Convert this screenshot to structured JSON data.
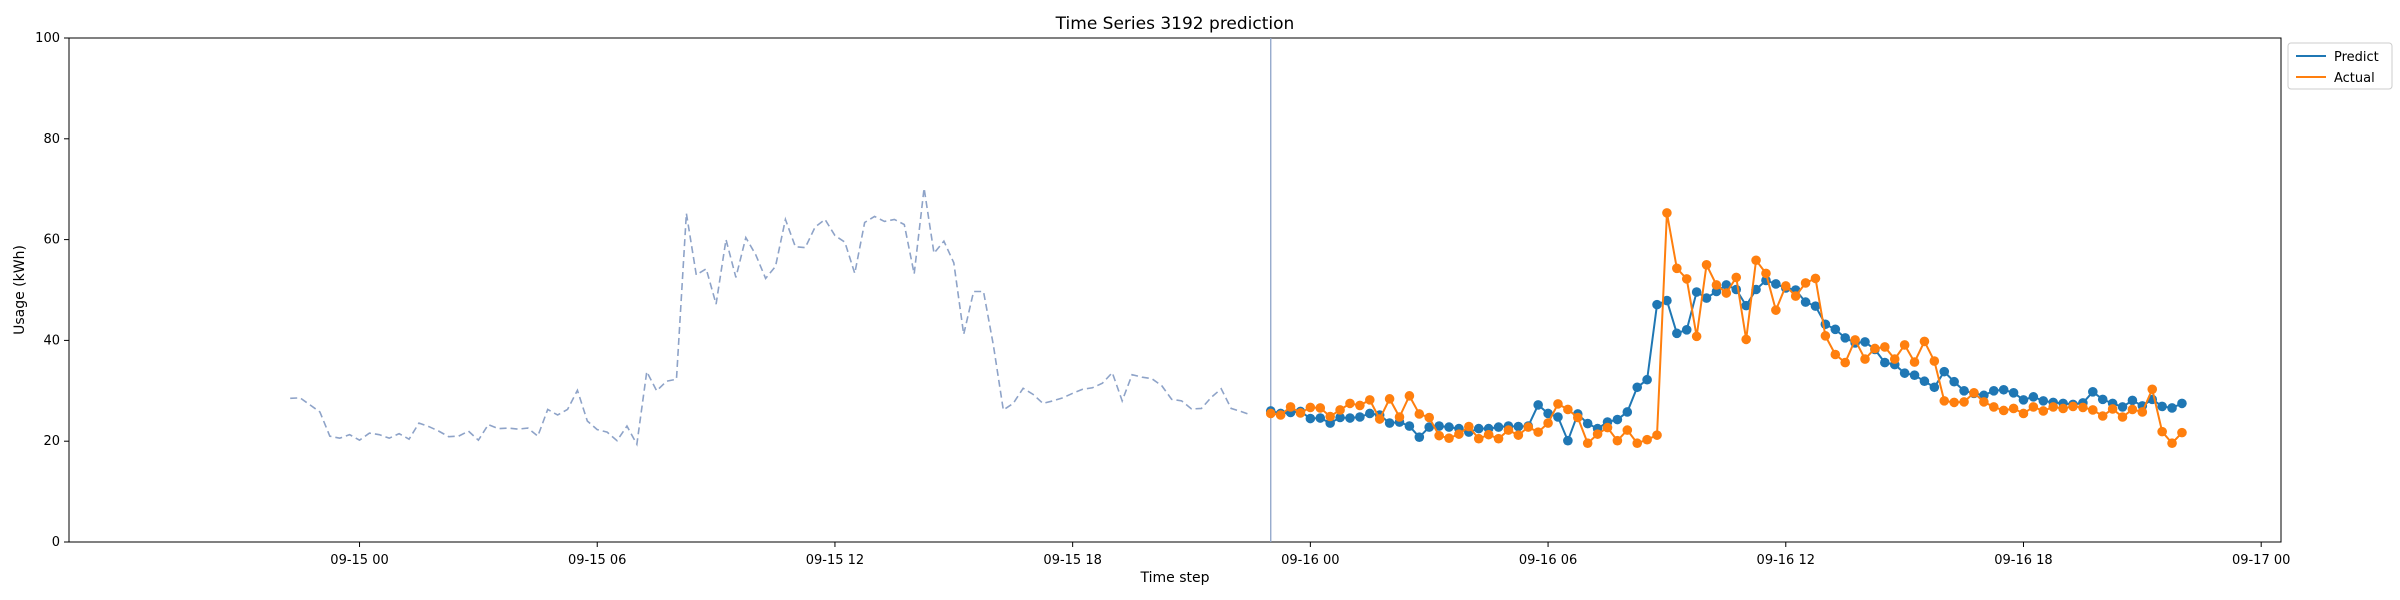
{
  "chart_data": {
    "type": "line",
    "title": "Time Series 3192 prediction",
    "xlabel": "Time step",
    "ylabel": "Usage (kWh)",
    "ylim": [
      0,
      100
    ],
    "yticks": [
      0,
      20,
      40,
      60,
      80,
      100
    ],
    "xlim": [
      "2024-09-14 16:40",
      "2024-09-17 00:30"
    ],
    "xticks": [
      {
        "t": "2024-09-15 00:00",
        "label": "09-15 00"
      },
      {
        "t": "2024-09-15 06:00",
        "label": "09-15 06"
      },
      {
        "t": "2024-09-15 12:00",
        "label": "09-15 12"
      },
      {
        "t": "2024-09-15 18:00",
        "label": "09-15 18"
      },
      {
        "t": "2024-09-16 00:00",
        "label": "09-16 00"
      },
      {
        "t": "2024-09-16 06:00",
        "label": "09-16 06"
      },
      {
        "t": "2024-09-16 12:00",
        "label": "09-16 12"
      },
      {
        "t": "2024-09-16 18:00",
        "label": "09-16 18"
      },
      {
        "t": "2024-09-17 00:00",
        "label": "09-17 00"
      }
    ],
    "grid": false,
    "legend": "upper right, outside plot",
    "forecast_start": "2024-09-15 23:00",
    "series": [
      {
        "name": "",
        "style": "dashed",
        "color": "#8ea3c8",
        "start": "2024-09-14 22:15",
        "interval_minutes": 15,
        "values": [
          28.5,
          28.6,
          27.2,
          25.8,
          21.0,
          20.6,
          21.3,
          20.2,
          21.6,
          21.3,
          20.6,
          21.5,
          20.4,
          23.6,
          22.9,
          22.0,
          20.9,
          21.0,
          22.0,
          20.2,
          23.3,
          22.5,
          22.6,
          22.4,
          22.6,
          21.0,
          26.3,
          25.2,
          26.3,
          30.1,
          24.0,
          22.3,
          21.8,
          20.1,
          23.0,
          19.4,
          33.8,
          30.0,
          31.9,
          32.3,
          65.2,
          53.0,
          54.2,
          47.2,
          60.0,
          52.5,
          60.4,
          57.0,
          52.3,
          54.7,
          64.0,
          58.6,
          58.4,
          62.5,
          64.0,
          60.8,
          59.5,
          53.3,
          63.4,
          64.6,
          63.6,
          64.0,
          63.0,
          53.2,
          70.2,
          57.3,
          59.7,
          55.4,
          41.2,
          49.7,
          49.7,
          39.0,
          26.2,
          27.5,
          30.5,
          29.3,
          27.5,
          28.0,
          28.6,
          29.5,
          30.3,
          30.6,
          31.5,
          33.6,
          28.0,
          33.2,
          32.7,
          32.4,
          31.0,
          28.3,
          28.0,
          26.4,
          26.5,
          28.7,
          30.4,
          26.5,
          25.9,
          25.2
        ]
      },
      {
        "name": "Predict",
        "style": "line-marker",
        "color": "#1f77b4",
        "start": "2024-09-15 23:00",
        "interval_minutes": 15,
        "values": [
          26.0,
          25.5,
          25.7,
          25.9,
          24.5,
          24.6,
          23.6,
          24.7,
          24.6,
          24.8,
          25.5,
          25.2,
          23.6,
          23.8,
          23.0,
          20.8,
          22.8,
          23.0,
          22.8,
          22.5,
          21.8,
          22.5,
          22.5,
          22.8,
          23.0,
          22.9,
          23.0,
          27.2,
          25.5,
          24.8,
          20.1,
          25.4,
          23.5,
          22.5,
          23.8,
          24.3,
          25.8,
          30.7,
          32.2,
          47.1,
          47.9,
          41.4,
          42.1,
          49.6,
          48.4,
          49.7,
          51.0,
          50.1,
          46.9,
          50.1,
          51.9,
          51.2,
          50.4,
          50.0,
          47.6,
          46.8,
          43.2,
          42.2,
          40.5,
          39.5,
          39.7,
          38.2,
          35.6,
          35.2,
          33.5,
          33.1,
          31.9,
          30.7,
          33.8,
          31.8,
          30.0,
          29.5,
          29.1,
          30.0,
          30.2,
          29.6,
          28.2,
          28.8,
          28.0,
          27.7,
          27.5,
          27.3,
          27.6,
          29.8,
          28.3,
          27.5,
          26.8,
          28.1,
          27.0,
          28.3,
          26.9,
          26.6,
          27.5
        ]
      },
      {
        "name": "Actual",
        "style": "line-marker",
        "color": "#ff7f0e",
        "start": "2024-09-15 23:00",
        "interval_minutes": 15,
        "values": [
          25.5,
          25.2,
          26.8,
          25.6,
          26.7,
          26.6,
          24.9,
          26.2,
          27.5,
          27.1,
          28.2,
          24.4,
          28.4,
          24.8,
          29.0,
          25.4,
          24.7,
          21.1,
          20.6,
          21.4,
          22.9,
          20.5,
          21.3,
          20.5,
          22.2,
          21.2,
          22.8,
          21.8,
          23.6,
          27.4,
          26.3,
          24.7,
          19.6,
          21.4,
          22.7,
          20.1,
          22.2,
          19.6,
          20.3,
          21.2,
          65.3,
          54.3,
          52.2,
          40.8,
          55.0,
          51.0,
          49.4,
          52.5,
          40.2,
          55.9,
          53.3,
          46.0,
          50.8,
          48.8,
          51.4,
          52.3,
          40.9,
          37.2,
          35.6,
          40.1,
          36.3,
          38.4,
          38.7,
          36.3,
          39.1,
          35.7,
          39.8,
          35.9,
          28.0,
          27.7,
          27.8,
          29.6,
          27.8,
          26.8,
          26.1,
          26.5,
          25.5,
          26.8,
          26.0,
          26.8,
          26.5,
          26.9,
          26.7,
          26.2,
          25.0,
          26.4,
          24.8,
          26.3,
          25.8,
          30.3,
          21.9,
          19.6,
          21.7
        ]
      }
    ]
  }
}
